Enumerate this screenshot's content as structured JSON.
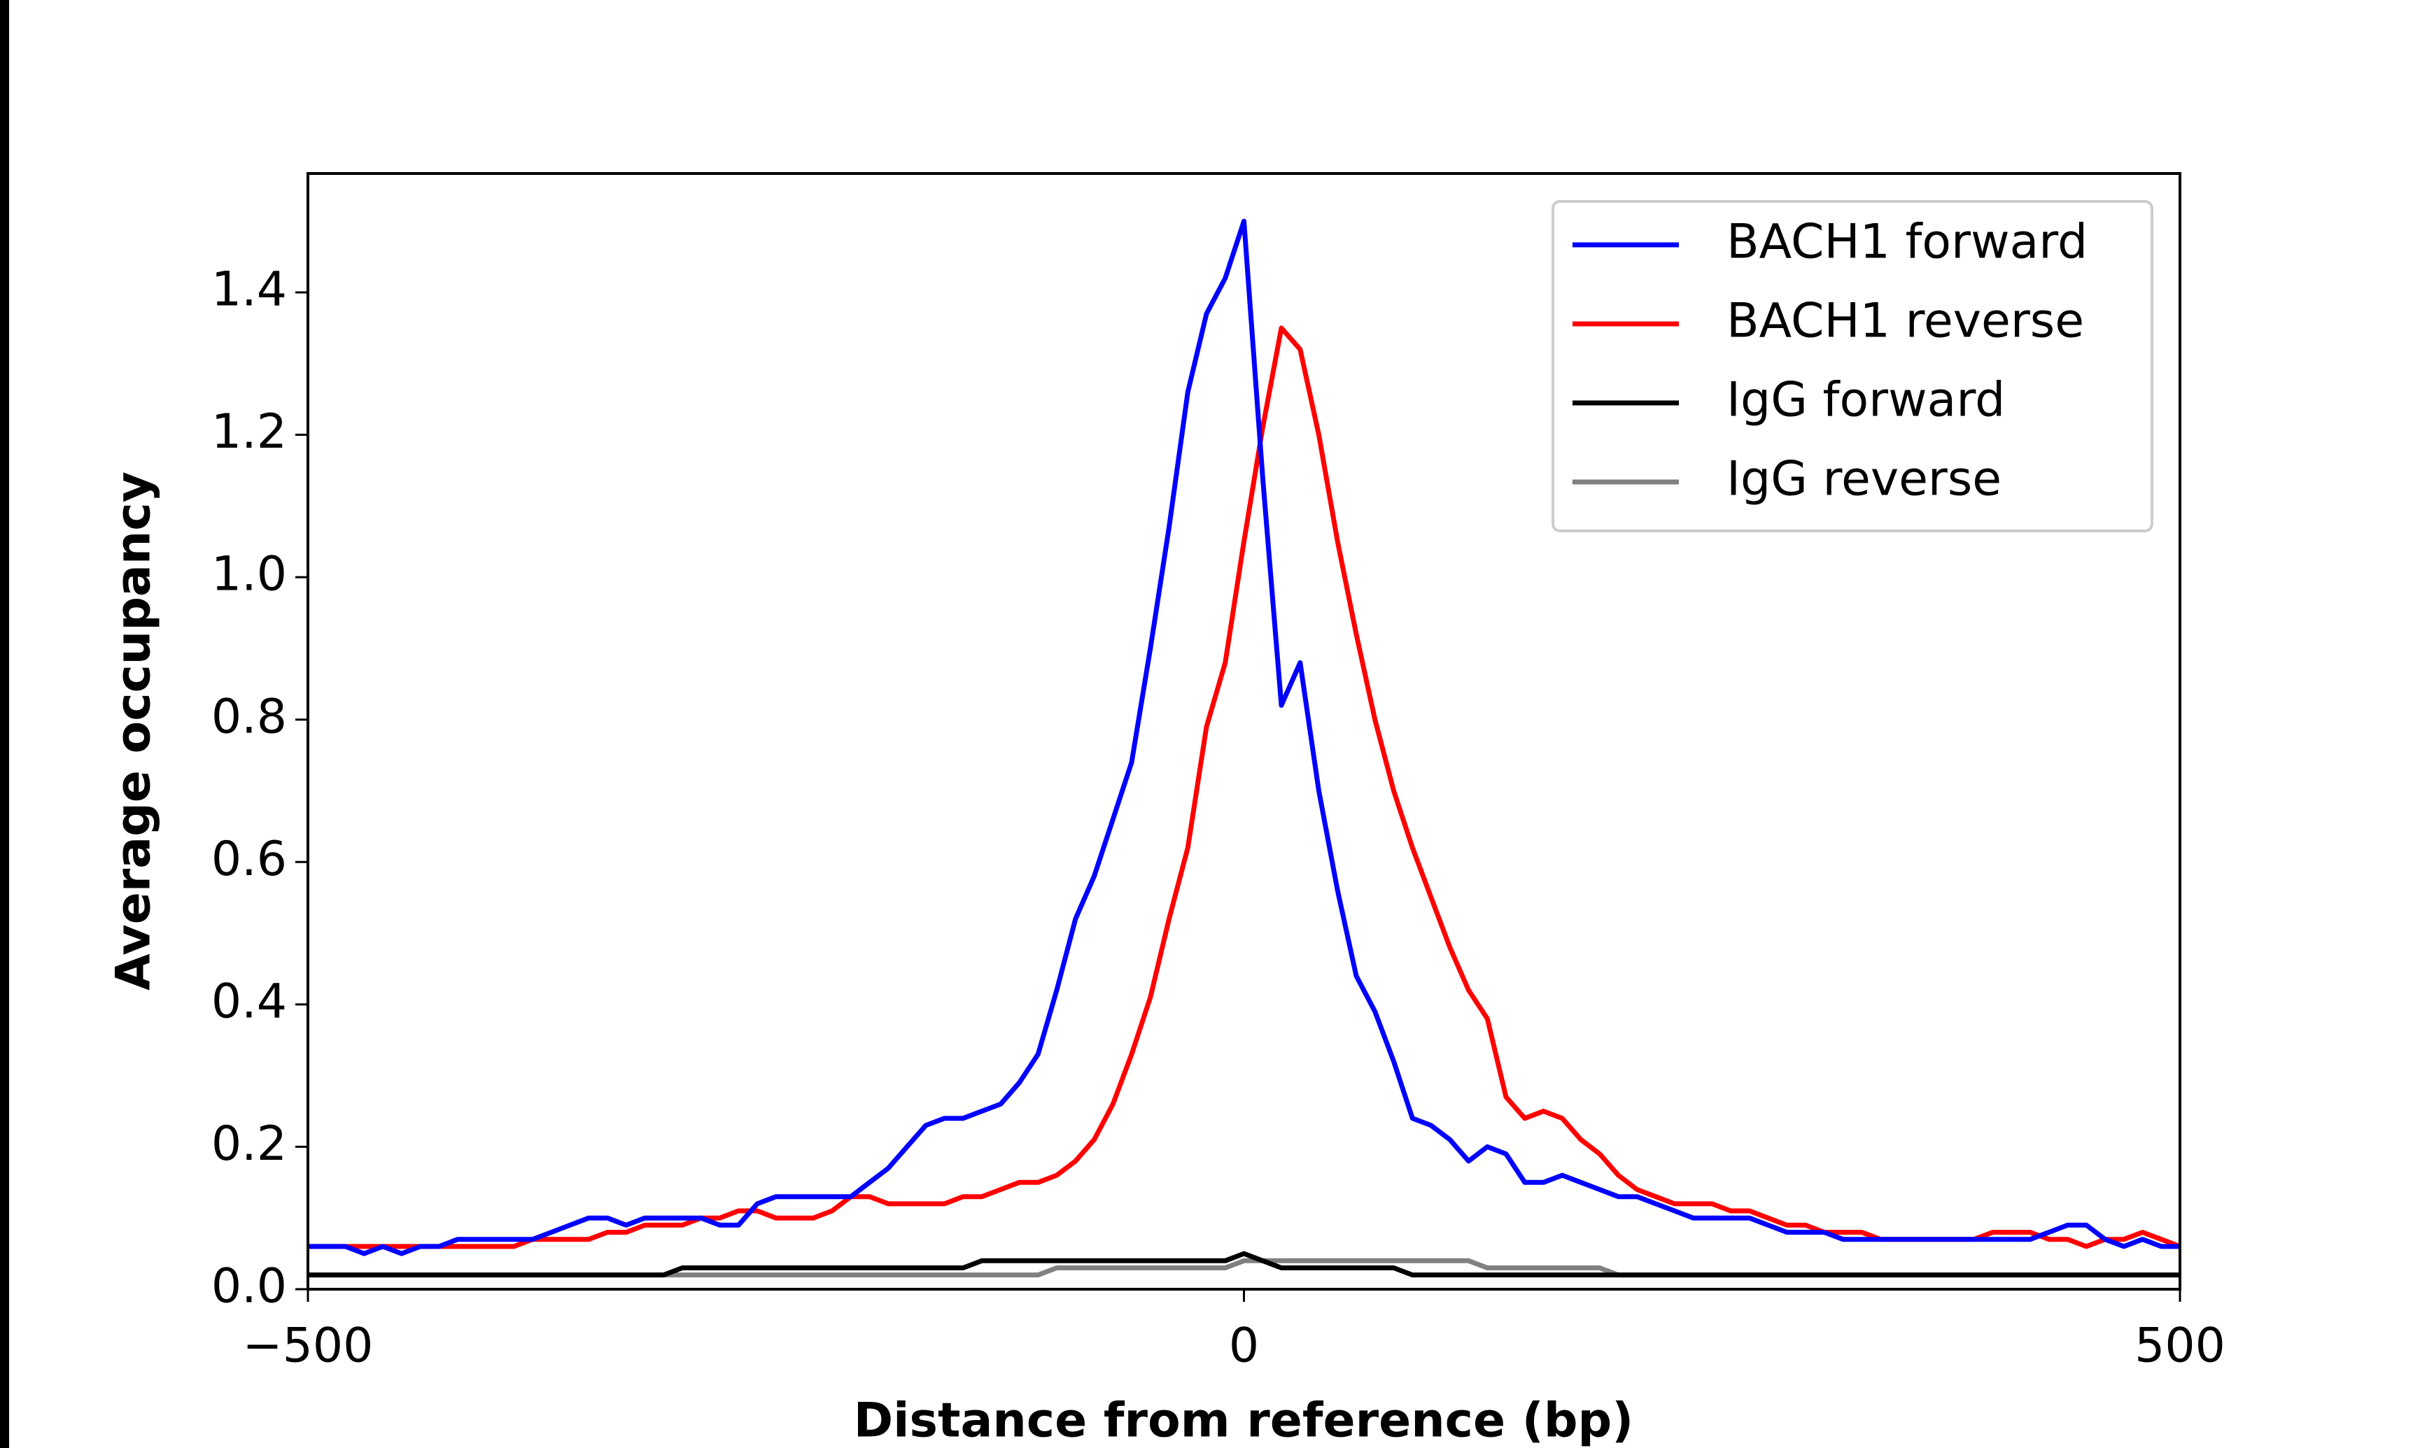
{
  "chart_data": {
    "type": "line",
    "xlabel": "Distance from reference (bp)",
    "ylabel": "Average occupancy",
    "x": [
      -500,
      -490,
      -480,
      -470,
      -460,
      -450,
      -440,
      -430,
      -420,
      -410,
      -400,
      -390,
      -380,
      -370,
      -360,
      -350,
      -340,
      -330,
      -320,
      -310,
      -300,
      -290,
      -280,
      -270,
      -260,
      -250,
      -240,
      -230,
      -220,
      -210,
      -200,
      -190,
      -180,
      -170,
      -160,
      -150,
      -140,
      -130,
      -120,
      -110,
      -100,
      -90,
      -80,
      -70,
      -60,
      -50,
      -40,
      -30,
      -20,
      -10,
      0,
      10,
      20,
      30,
      40,
      50,
      60,
      70,
      80,
      90,
      100,
      110,
      120,
      130,
      140,
      150,
      160,
      170,
      180,
      190,
      200,
      210,
      220,
      230,
      240,
      250,
      260,
      270,
      280,
      290,
      300,
      310,
      320,
      330,
      340,
      350,
      360,
      370,
      380,
      390,
      400,
      410,
      420,
      430,
      440,
      450,
      460,
      470,
      480,
      490,
      500
    ],
    "series": [
      {
        "name": "BACH1 forward",
        "color": "#0000ff",
        "values": [
          0.06,
          0.06,
          0.06,
          0.05,
          0.06,
          0.05,
          0.06,
          0.06,
          0.07,
          0.07,
          0.07,
          0.07,
          0.07,
          0.08,
          0.09,
          0.1,
          0.1,
          0.09,
          0.1,
          0.1,
          0.1,
          0.1,
          0.09,
          0.09,
          0.12,
          0.13,
          0.13,
          0.13,
          0.13,
          0.13,
          0.15,
          0.17,
          0.2,
          0.23,
          0.24,
          0.24,
          0.25,
          0.26,
          0.29,
          0.33,
          0.42,
          0.52,
          0.58,
          0.66,
          0.74,
          0.9,
          1.07,
          1.26,
          1.37,
          1.42,
          1.5,
          1.14,
          0.82,
          0.88,
          0.7,
          0.56,
          0.44,
          0.39,
          0.32,
          0.24,
          0.23,
          0.21,
          0.18,
          0.2,
          0.19,
          0.15,
          0.15,
          0.16,
          0.15,
          0.14,
          0.13,
          0.13,
          0.12,
          0.11,
          0.1,
          0.1,
          0.1,
          0.1,
          0.09,
          0.08,
          0.08,
          0.08,
          0.07,
          0.07,
          0.07,
          0.07,
          0.07,
          0.07,
          0.07,
          0.07,
          0.07,
          0.07,
          0.07,
          0.08,
          0.09,
          0.09,
          0.07,
          0.06,
          0.07,
          0.06,
          0.06
        ]
      },
      {
        "name": "BACH1 reverse",
        "color": "#ff0000",
        "values": [
          0.06,
          0.06,
          0.06,
          0.06,
          0.06,
          0.06,
          0.06,
          0.06,
          0.06,
          0.06,
          0.06,
          0.06,
          0.07,
          0.07,
          0.07,
          0.07,
          0.08,
          0.08,
          0.09,
          0.09,
          0.09,
          0.1,
          0.1,
          0.11,
          0.11,
          0.1,
          0.1,
          0.1,
          0.11,
          0.13,
          0.13,
          0.12,
          0.12,
          0.12,
          0.12,
          0.13,
          0.13,
          0.14,
          0.15,
          0.15,
          0.16,
          0.18,
          0.21,
          0.26,
          0.33,
          0.41,
          0.52,
          0.62,
          0.79,
          0.88,
          1.05,
          1.21,
          1.35,
          1.32,
          1.2,
          1.05,
          0.92,
          0.8,
          0.7,
          0.62,
          0.55,
          0.48,
          0.42,
          0.38,
          0.27,
          0.24,
          0.25,
          0.24,
          0.21,
          0.19,
          0.16,
          0.14,
          0.13,
          0.12,
          0.12,
          0.12,
          0.11,
          0.11,
          0.1,
          0.09,
          0.09,
          0.08,
          0.08,
          0.08,
          0.07,
          0.07,
          0.07,
          0.07,
          0.07,
          0.07,
          0.08,
          0.08,
          0.08,
          0.07,
          0.07,
          0.06,
          0.07,
          0.07,
          0.08,
          0.07,
          0.06
        ]
      },
      {
        "name": "IgG forward",
        "color": "#000000",
        "values": [
          0.02,
          0.02,
          0.02,
          0.02,
          0.02,
          0.02,
          0.02,
          0.02,
          0.02,
          0.02,
          0.02,
          0.02,
          0.02,
          0.02,
          0.02,
          0.02,
          0.02,
          0.02,
          0.02,
          0.02,
          0.03,
          0.03,
          0.03,
          0.03,
          0.03,
          0.03,
          0.03,
          0.03,
          0.03,
          0.03,
          0.03,
          0.03,
          0.03,
          0.03,
          0.03,
          0.03,
          0.04,
          0.04,
          0.04,
          0.04,
          0.04,
          0.04,
          0.04,
          0.04,
          0.04,
          0.04,
          0.04,
          0.04,
          0.04,
          0.04,
          0.05,
          0.04,
          0.03,
          0.03,
          0.03,
          0.03,
          0.03,
          0.03,
          0.03,
          0.02,
          0.02,
          0.02,
          0.02,
          0.02,
          0.02,
          0.02,
          0.02,
          0.02,
          0.02,
          0.02,
          0.02,
          0.02,
          0.02,
          0.02,
          0.02,
          0.02,
          0.02,
          0.02,
          0.02,
          0.02,
          0.02,
          0.02,
          0.02,
          0.02,
          0.02,
          0.02,
          0.02,
          0.02,
          0.02,
          0.02,
          0.02,
          0.02,
          0.02,
          0.02,
          0.02,
          0.02,
          0.02,
          0.02,
          0.02,
          0.02,
          0.02
        ]
      },
      {
        "name": "IgG reverse",
        "color": "#808080",
        "values": [
          0.02,
          0.02,
          0.02,
          0.02,
          0.02,
          0.02,
          0.02,
          0.02,
          0.02,
          0.02,
          0.02,
          0.02,
          0.02,
          0.02,
          0.02,
          0.02,
          0.02,
          0.02,
          0.02,
          0.02,
          0.02,
          0.02,
          0.02,
          0.02,
          0.02,
          0.02,
          0.02,
          0.02,
          0.02,
          0.02,
          0.02,
          0.02,
          0.02,
          0.02,
          0.02,
          0.02,
          0.02,
          0.02,
          0.02,
          0.02,
          0.03,
          0.03,
          0.03,
          0.03,
          0.03,
          0.03,
          0.03,
          0.03,
          0.03,
          0.03,
          0.04,
          0.04,
          0.04,
          0.04,
          0.04,
          0.04,
          0.04,
          0.04,
          0.04,
          0.04,
          0.04,
          0.04,
          0.04,
          0.03,
          0.03,
          0.03,
          0.03,
          0.03,
          0.03,
          0.03,
          0.02,
          0.02,
          0.02,
          0.02,
          0.02,
          0.02,
          0.02,
          0.02,
          0.02,
          0.02,
          0.02,
          0.02,
          0.02,
          0.02,
          0.02,
          0.02,
          0.02,
          0.02,
          0.02,
          0.02,
          0.02,
          0.02,
          0.02,
          0.02,
          0.02,
          0.02,
          0.02,
          0.02,
          0.02,
          0.02,
          0.02
        ]
      }
    ],
    "xlim": [
      -500,
      500
    ],
    "xticks": [
      {
        "value": -500,
        "label": "−500"
      },
      0,
      500
    ],
    "ylim": [
      0,
      1.567
    ],
    "yticks": [
      {
        "value": 0,
        "label": "0.0"
      },
      0.2,
      0.4,
      0.6,
      0.8,
      {
        "value": 1,
        "label": "1.0"
      },
      1.2,
      1.4
    ],
    "legend": "upper right"
  }
}
